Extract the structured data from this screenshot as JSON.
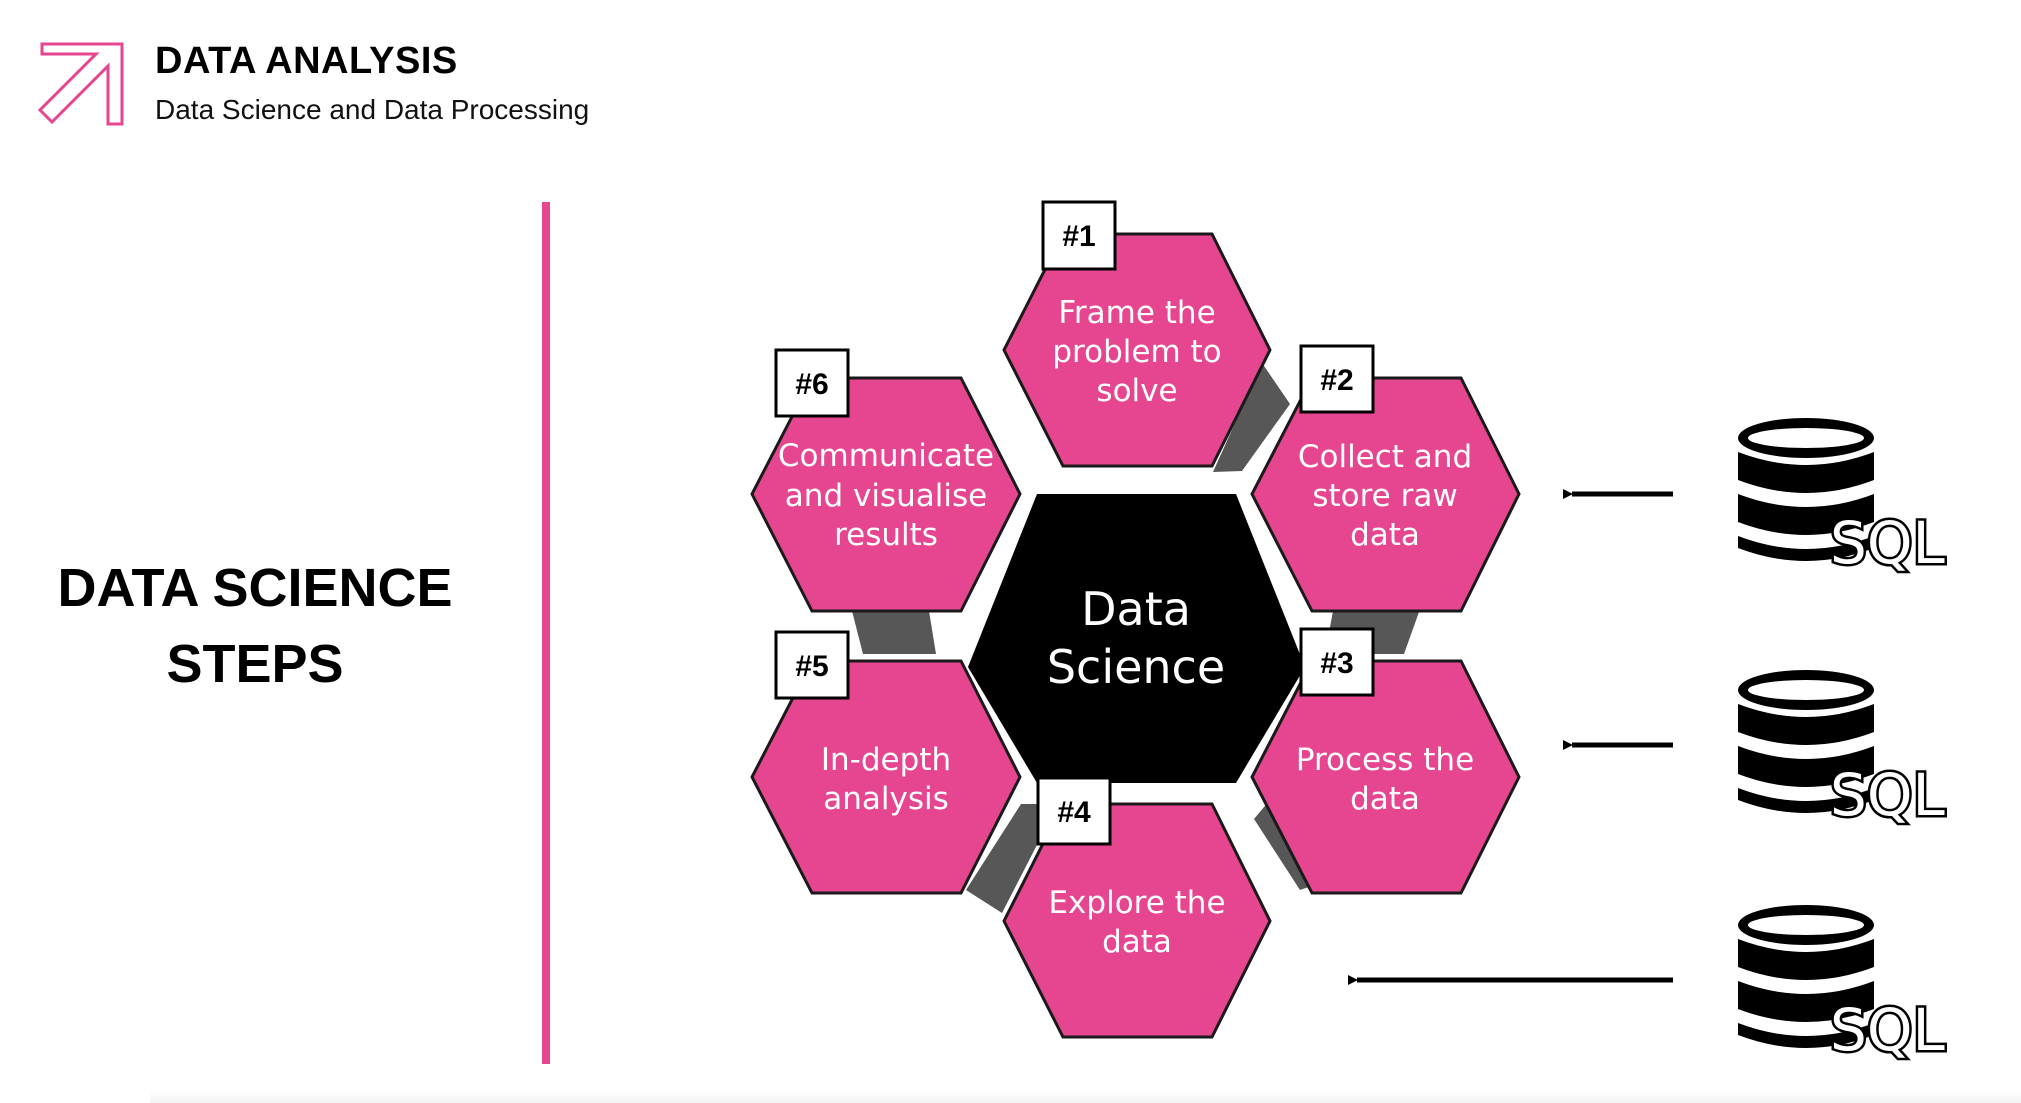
{
  "header": {
    "title": "DATA ANALYSIS",
    "subtitle": "Data Science and Data Processing"
  },
  "section": {
    "title": "DATA SCIENCE STEPS"
  },
  "colors": {
    "accent": "#e5468f",
    "center": "#000000",
    "connector": "#575757"
  },
  "icons": {
    "logo": "arrow-up-right-icon",
    "database": "database-icon"
  },
  "diagram": {
    "center": {
      "line1": "Data",
      "line2": "Science"
    },
    "steps": [
      {
        "badge": "#1",
        "lines": [
          "Frame the",
          "problem to",
          "solve"
        ]
      },
      {
        "badge": "#2",
        "lines": [
          "Collect and",
          "store raw",
          "data"
        ]
      },
      {
        "badge": "#3",
        "lines": [
          "Process the",
          "data"
        ]
      },
      {
        "badge": "#4",
        "lines": [
          "Explore the",
          "data"
        ]
      },
      {
        "badge": "#5",
        "lines": [
          "In-depth",
          "analysis"
        ]
      },
      {
        "badge": "#6",
        "lines": [
          "Communicate",
          "and visualise",
          "results"
        ]
      }
    ],
    "sources": [
      {
        "label": "SQL"
      },
      {
        "label": "SQL"
      },
      {
        "label": "SQL"
      }
    ]
  }
}
